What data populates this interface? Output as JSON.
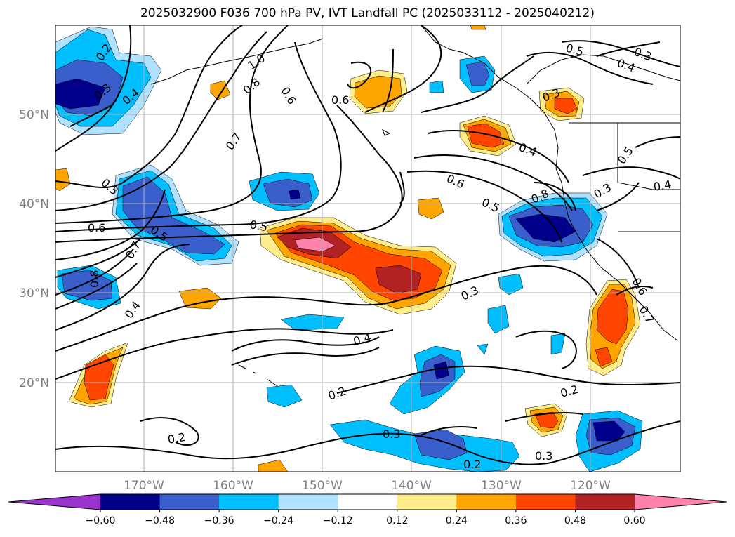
{
  "title": "2025032900 F036 700 hPa PV, IVT Landfall PC (2025033112 - 2025040212)",
  "lat_labels": [
    "50°N",
    "40°N",
    "30°N",
    "20°N"
  ],
  "lon_labels": [
    "170°W",
    "160°W",
    "150°W",
    "140°W",
    "130°W",
    "120°W"
  ],
  "colorbar": {
    "ticks": [
      "−0.60",
      "−0.48",
      "−0.36",
      "−0.24",
      "−0.12",
      "0.12",
      "0.24",
      "0.36",
      "0.48",
      "0.60"
    ],
    "colors": [
      "#9a32cd",
      "#00008b",
      "#3a5fcd",
      "#00bfff",
      "#b0e2ff",
      "#ffffff",
      "#ffec8b",
      "#ffa500",
      "#ff4500",
      "#b22222",
      "#ff82ab"
    ]
  },
  "contour_labels": {
    "a": "0.2",
    "b": "0.3",
    "c": "0.4",
    "d": "1.0",
    "e": "0.8",
    "f": "0.6",
    "g": "0.6",
    "h": "0.5",
    "i": "0.3",
    "j": "0.4",
    "k": "0.7",
    "l": "0.3",
    "m": "0.3",
    "n": "0.4",
    "o": "0.5",
    "p": "0.6",
    "q": "0.5",
    "r": "0.5",
    "s": "0.8",
    "t": "0.3",
    "u": "0.4",
    "v": "0.6",
    "w": "0.5",
    "x": "0.7",
    "y": "0.8",
    "z": "0.4",
    "aa": "0.4",
    "ab": "0.3",
    "ac": "0.2",
    "ad": "0.2",
    "ae": "0.3",
    "af": "0.2",
    "ag": "0.3",
    "ah": "0.2",
    "ai": "0.6",
    "aj": "0.7"
  }
}
